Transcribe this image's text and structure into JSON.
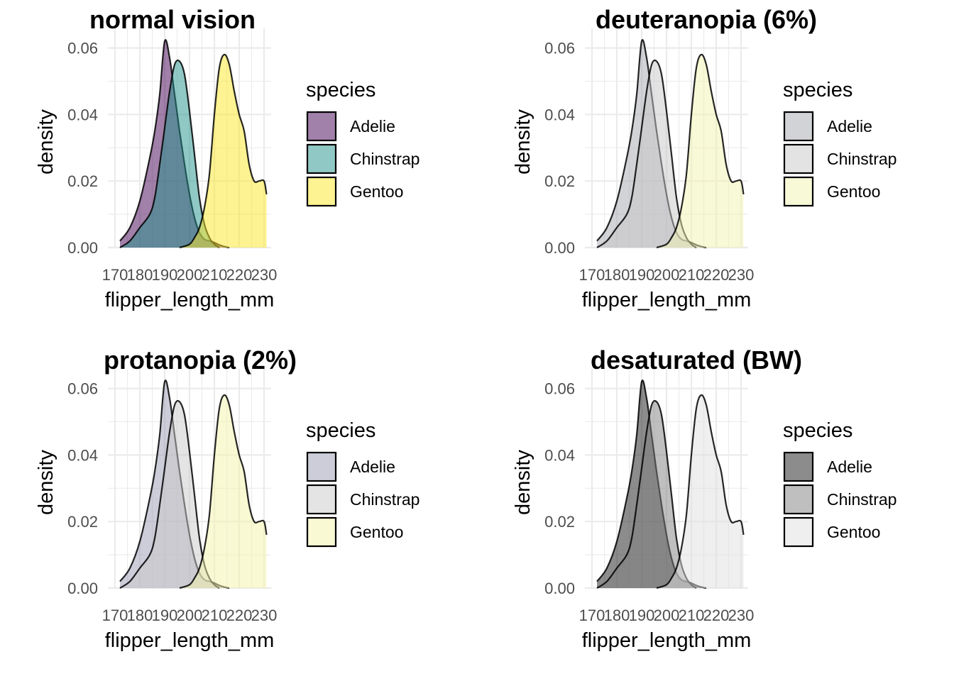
{
  "chart_data": [
    {
      "type": "area",
      "title": "normal vision",
      "xlabel": "flipper_length_mm",
      "ylabel": "density",
      "xlim": [
        170,
        232
      ],
      "ylim": [
        0,
        0.065
      ],
      "x_ticks": [
        "170",
        "180",
        "190",
        "200",
        "210",
        "220",
        "230"
      ],
      "y_ticks": [
        "0.00",
        "0.02",
        "0.04",
        "0.06"
      ],
      "grid": true,
      "legend_title": "species",
      "legend_position": "right",
      "fill_opacity": 0.5,
      "series": [
        {
          "name": "Adelie",
          "color": "#440154",
          "x": [
            172,
            176,
            180,
            184,
            186,
            188,
            190,
            192,
            194,
            196,
            198,
            200,
            202,
            204,
            206,
            208,
            210,
            212,
            214,
            216
          ],
          "y": [
            0.002,
            0.006,
            0.014,
            0.027,
            0.035,
            0.046,
            0.062,
            0.057,
            0.046,
            0.035,
            0.025,
            0.016,
            0.009,
            0.0045,
            0.0025,
            0.002,
            0.0015,
            0.0008,
            0.0003,
            0.0
          ]
        },
        {
          "name": "Chinstrap",
          "color": "#21918C",
          "x": [
            172,
            176,
            180,
            184,
            186,
            188,
            190,
            192,
            194,
            196,
            198,
            200,
            202,
            204,
            206,
            208,
            210,
            212
          ],
          "y": [
            0.0,
            0.002,
            0.006,
            0.01,
            0.015,
            0.025,
            0.036,
            0.047,
            0.055,
            0.056,
            0.052,
            0.041,
            0.028,
            0.015,
            0.007,
            0.003,
            0.001,
            0.0
          ]
        },
        {
          "name": "Gentoo",
          "color": "#FDE725",
          "x": [
            196,
            200,
            202,
            204,
            206,
            208,
            210,
            212,
            214,
            216,
            218,
            220,
            222,
            224,
            226,
            228,
            230,
            231
          ],
          "y": [
            0.0,
            0.001,
            0.003,
            0.006,
            0.012,
            0.022,
            0.04,
            0.054,
            0.058,
            0.055,
            0.047,
            0.04,
            0.035,
            0.025,
            0.02,
            0.02,
            0.02,
            0.016
          ]
        }
      ]
    },
    {
      "type": "area",
      "title": "deuteranopia (6%)",
      "xlabel": "flipper_length_mm",
      "ylabel": "density",
      "xlim": [
        170,
        232
      ],
      "ylim": [
        0,
        0.065
      ],
      "x_ticks": [
        "170",
        "180",
        "190",
        "200",
        "210",
        "220",
        "230"
      ],
      "y_ticks": [
        "0.00",
        "0.02",
        "0.04",
        "0.06"
      ],
      "grid": true,
      "legend_title": "species",
      "legend_position": "right",
      "fill_opacity": 0.5,
      "series": [
        {
          "name": "Adelie",
          "color": "#A5A7AD",
          "x": [
            172,
            176,
            180,
            184,
            186,
            188,
            190,
            192,
            194,
            196,
            198,
            200,
            202,
            204,
            206,
            208,
            210,
            212,
            214,
            216
          ],
          "y": [
            0.002,
            0.006,
            0.014,
            0.027,
            0.035,
            0.046,
            0.062,
            0.057,
            0.046,
            0.035,
            0.025,
            0.016,
            0.009,
            0.0045,
            0.0025,
            0.002,
            0.0015,
            0.0008,
            0.0003,
            0.0
          ]
        },
        {
          "name": "Chinstrap",
          "color": "#C8C8CA",
          "x": [
            172,
            176,
            180,
            184,
            186,
            188,
            190,
            192,
            194,
            196,
            198,
            200,
            202,
            204,
            206,
            208,
            210,
            212
          ],
          "y": [
            0.0,
            0.002,
            0.006,
            0.01,
            0.015,
            0.025,
            0.036,
            0.047,
            0.055,
            0.056,
            0.052,
            0.041,
            0.028,
            0.015,
            0.007,
            0.003,
            0.001,
            0.0
          ]
        },
        {
          "name": "Gentoo",
          "color": "#F2F3B0",
          "x": [
            196,
            200,
            202,
            204,
            206,
            208,
            210,
            212,
            214,
            216,
            218,
            220,
            222,
            224,
            226,
            228,
            230,
            231
          ],
          "y": [
            0.0,
            0.001,
            0.003,
            0.006,
            0.012,
            0.022,
            0.04,
            0.054,
            0.058,
            0.055,
            0.047,
            0.04,
            0.035,
            0.025,
            0.02,
            0.02,
            0.02,
            0.016
          ]
        }
      ]
    },
    {
      "type": "area",
      "title": "protanopia (2%)",
      "xlabel": "flipper_length_mm",
      "ylabel": "density",
      "xlim": [
        170,
        232
      ],
      "ylim": [
        0,
        0.065
      ],
      "x_ticks": [
        "170",
        "180",
        "190",
        "200",
        "210",
        "220",
        "230"
      ],
      "y_ticks": [
        "0.00",
        "0.02",
        "0.04",
        "0.06"
      ],
      "grid": true,
      "legend_title": "species",
      "legend_position": "right",
      "fill_opacity": 0.5,
      "series": [
        {
          "name": "Adelie",
          "color": "#9A9CB4",
          "x": [
            172,
            176,
            180,
            184,
            186,
            188,
            190,
            192,
            194,
            196,
            198,
            200,
            202,
            204,
            206,
            208,
            210,
            212,
            214,
            216
          ],
          "y": [
            0.002,
            0.006,
            0.014,
            0.027,
            0.035,
            0.046,
            0.062,
            0.057,
            0.046,
            0.035,
            0.025,
            0.016,
            0.009,
            0.0045,
            0.0025,
            0.002,
            0.0015,
            0.0008,
            0.0003,
            0.0
          ]
        },
        {
          "name": "Chinstrap",
          "color": "#CACACA",
          "x": [
            172,
            176,
            180,
            184,
            186,
            188,
            190,
            192,
            194,
            196,
            198,
            200,
            202,
            204,
            206,
            208,
            210,
            212
          ],
          "y": [
            0.0,
            0.002,
            0.006,
            0.01,
            0.015,
            0.025,
            0.036,
            0.047,
            0.055,
            0.056,
            0.052,
            0.041,
            0.028,
            0.015,
            0.007,
            0.003,
            0.001,
            0.0
          ]
        },
        {
          "name": "Gentoo",
          "color": "#F3F3A9",
          "x": [
            196,
            200,
            202,
            204,
            206,
            208,
            210,
            212,
            214,
            216,
            218,
            220,
            222,
            224,
            226,
            228,
            230,
            231
          ],
          "y": [
            0.0,
            0.001,
            0.003,
            0.006,
            0.012,
            0.022,
            0.04,
            0.054,
            0.058,
            0.055,
            0.047,
            0.04,
            0.035,
            0.025,
            0.02,
            0.02,
            0.02,
            0.016
          ]
        }
      ]
    },
    {
      "type": "area",
      "title": "desaturated (BW)",
      "xlabel": "flipper_length_mm",
      "ylabel": "density",
      "xlim": [
        170,
        232
      ],
      "ylim": [
        0,
        0.065
      ],
      "x_ticks": [
        "170",
        "180",
        "190",
        "200",
        "210",
        "220",
        "230"
      ],
      "y_ticks": [
        "0.00",
        "0.02",
        "0.04",
        "0.06"
      ],
      "grid": true,
      "legend_title": "species",
      "legend_position": "right",
      "fill_opacity": 0.5,
      "series": [
        {
          "name": "Adelie",
          "color": "#1A1A1A",
          "x": [
            172,
            176,
            180,
            184,
            186,
            188,
            190,
            192,
            194,
            196,
            198,
            200,
            202,
            204,
            206,
            208,
            210,
            212,
            214,
            216
          ],
          "y": [
            0.002,
            0.006,
            0.014,
            0.027,
            0.035,
            0.046,
            0.062,
            0.057,
            0.046,
            0.035,
            0.025,
            0.016,
            0.009,
            0.0045,
            0.0025,
            0.002,
            0.0015,
            0.0008,
            0.0003,
            0.0
          ]
        },
        {
          "name": "Chinstrap",
          "color": "#808080",
          "x": [
            172,
            176,
            180,
            184,
            186,
            188,
            190,
            192,
            194,
            196,
            198,
            200,
            202,
            204,
            206,
            208,
            210,
            212
          ],
          "y": [
            0.0,
            0.002,
            0.006,
            0.01,
            0.015,
            0.025,
            0.036,
            0.047,
            0.055,
            0.056,
            0.052,
            0.041,
            0.028,
            0.015,
            0.007,
            0.003,
            0.001,
            0.0
          ]
        },
        {
          "name": "Gentoo",
          "color": "#E0E0E0",
          "x": [
            196,
            200,
            202,
            204,
            206,
            208,
            210,
            212,
            214,
            216,
            218,
            220,
            222,
            224,
            226,
            228,
            230,
            231
          ],
          "y": [
            0.0,
            0.001,
            0.003,
            0.006,
            0.012,
            0.022,
            0.04,
            0.054,
            0.058,
            0.055,
            0.047,
            0.04,
            0.035,
            0.025,
            0.02,
            0.02,
            0.02,
            0.016
          ]
        }
      ]
    }
  ]
}
